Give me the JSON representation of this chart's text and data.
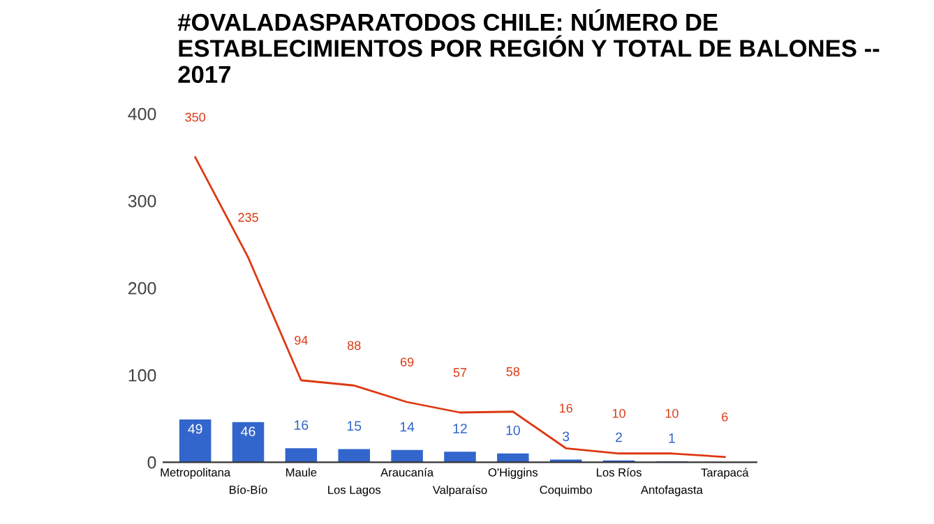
{
  "chart_data": {
    "type": "bar",
    "title": "#OVALADASPARATODOS CHILE: NÚMERO DE ESTABLECIMIENTOS POR REGIÓN Y TOTAL DE BALONES -- 2017",
    "categories": [
      "Metropolitana",
      "Bío-Bío",
      "Maule",
      "Los Lagos",
      "Araucanía",
      "Valparaíso",
      "O'Higgins",
      "Coquimbo",
      "Los Ríos",
      "Antofagasta",
      "Tarapacá"
    ],
    "series": [
      {
        "color": "#3366cc",
        "values": [
          49,
          46,
          16,
          15,
          14,
          12,
          10,
          3,
          2,
          1,
          0
        ],
        "value_labels": [
          "49",
          "46",
          "16",
          "15",
          "14",
          "12",
          "10",
          "3",
          "2",
          "1",
          null
        ]
      },
      {
        "type": "line",
        "color": "#dc3912",
        "values": [
          350,
          235,
          94,
          88,
          69,
          57,
          58,
          16,
          10,
          10,
          6
        ],
        "value_labels": [
          "350",
          "235",
          "94",
          "88",
          "69",
          "57",
          "58",
          "16",
          "10",
          "10",
          "6"
        ]
      }
    ],
    "ylim": [
      0,
      400
    ],
    "yticks": [
      0,
      100,
      200,
      300,
      400
    ],
    "grid": false
  }
}
